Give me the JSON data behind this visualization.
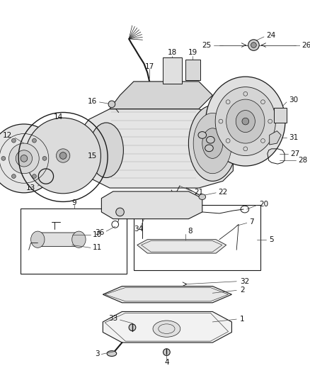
{
  "bg_color": "#ffffff",
  "line_color": "#1a1a1a",
  "label_color": "#111111",
  "figsize": [
    4.38,
    5.33
  ],
  "dpi": 100,
  "label_fontsize": 7.5,
  "components": {
    "trans_body": {
      "fill": "#e8e8e8"
    },
    "bell_housing": {
      "fill": "#d8d8d8"
    },
    "pan": {
      "fill": "#f0f0f0"
    },
    "gasket": {
      "fill": "#e0e0e0"
    }
  }
}
